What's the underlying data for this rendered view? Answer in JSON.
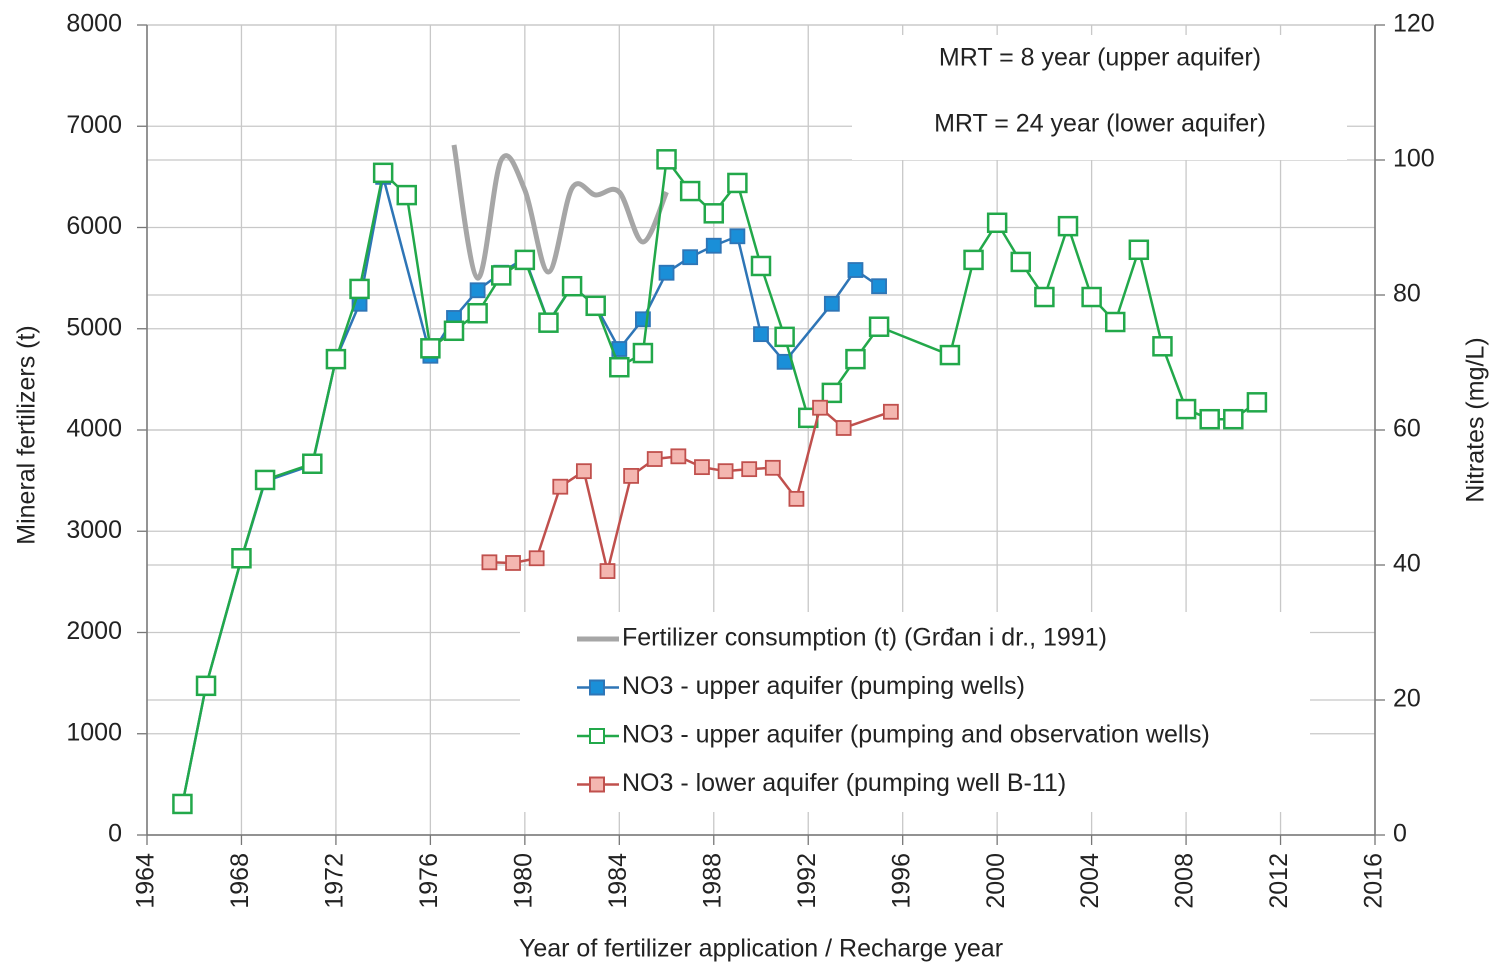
{
  "chart_data": {
    "type": "line",
    "xlabel": "Year of fertilizer application / Recharge year",
    "ylabel": "Mineral fertilizers (t)",
    "y2label": "Nitrates (mg/L)",
    "annotations": [
      "MRT = 8 year (upper aquifer)",
      "MRT = 24 year (lower aquifer)"
    ],
    "xlim": [
      1964,
      2016
    ],
    "xticks": [
      1964,
      1968,
      1972,
      1976,
      1980,
      1984,
      1988,
      1992,
      1996,
      2000,
      2004,
      2008,
      2012,
      2016
    ],
    "ylim": [
      0,
      8000
    ],
    "yticks": [
      0,
      1000,
      2000,
      3000,
      4000,
      5000,
      6000,
      7000,
      8000
    ],
    "y2lim": [
      0,
      120
    ],
    "y2ticks": [
      0,
      20,
      40,
      60,
      80,
      100,
      120
    ],
    "grid": true,
    "legend": "bottom",
    "series": [
      {
        "name": "Fertilizer consumption (t) (Grđan i dr., 1991)",
        "color": "#a6a6a6",
        "marker": "none",
        "smooth": true,
        "axis": "y",
        "x": [
          1977,
          1978,
          1979,
          1980,
          1981,
          1982,
          1983,
          1984,
          1985,
          1986
        ],
        "values": [
          6815,
          5500,
          6667,
          6370,
          5560,
          6390,
          6321,
          6350,
          5857,
          6350
        ]
      },
      {
        "name": "NO3 - upper aquifer (pumping wells)",
        "color": "#2e75b6",
        "marker": "square",
        "marker_fill": "#1a8fd8",
        "axis": "y2",
        "x": [
          1965.5,
          1966.5,
          1968,
          1969,
          1971,
          1972,
          1973,
          1974,
          1976,
          1977,
          1978,
          1979,
          1980,
          1981,
          1982,
          1983,
          1984,
          1985,
          1986,
          1987,
          1988,
          1989,
          1990,
          1991,
          1993,
          1994,
          1995
        ],
        "values": [
          4.6,
          22.1,
          40.9,
          52.4,
          54.8,
          70.5,
          78.7,
          97.5,
          71.0,
          76.6,
          80.7,
          83.3,
          85.5,
          76.0,
          81.3,
          78.4,
          72.0,
          76.4,
          83.3,
          85.6,
          87.3,
          88.7,
          74.2,
          70.1,
          78.7,
          83.7,
          81.3
        ]
      },
      {
        "name": "NO3 - upper aquifer (pumping and observation wells)",
        "color": "#22a84a",
        "marker": "square",
        "marker_fill": "#ffffff",
        "axis": "y2",
        "x": [
          1965.5,
          1966.5,
          1968,
          1969,
          1971,
          1972,
          1973,
          1974,
          1975,
          1976,
          1977,
          1978,
          1979,
          1980,
          1981,
          1982,
          1983,
          1984,
          1985,
          1986,
          1987,
          1988,
          1989,
          1990,
          1991,
          1992,
          1993,
          1994,
          1995,
          1998,
          1999,
          2000,
          2001,
          2002,
          2003,
          2004,
          2005,
          2006,
          2007,
          2008,
          2009,
          2010,
          2011
        ],
        "values": [
          4.6,
          22.1,
          41.0,
          52.6,
          55.0,
          70.5,
          80.9,
          98.1,
          94.8,
          72.1,
          74.7,
          77.3,
          82.9,
          85.2,
          75.9,
          81.3,
          78.4,
          69.3,
          71.4,
          100.1,
          95.4,
          92.1,
          96.6,
          84.3,
          73.8,
          61.8,
          65.5,
          70.5,
          75.3,
          71.1,
          85.2,
          90.7,
          84.9,
          79.7,
          90.2,
          79.7,
          76.0,
          86.7,
          72.4,
          63.1,
          61.6,
          61.6,
          64.1
        ]
      },
      {
        "name": "NO3 - lower aquifer (pumping well B-11)",
        "color": "#c0504d",
        "marker": "square",
        "marker_fill": "#f4b6b0",
        "axis": "y2",
        "x": [
          1978.5,
          1979.5,
          1980.5,
          1981.5,
          1982.5,
          1983.5,
          1984.5,
          1985.5,
          1986.5,
          1987.5,
          1988.5,
          1989.5,
          1990.5,
          1991.5,
          1992.5,
          1993.5,
          1995.5
        ],
        "values": [
          40.4,
          40.3,
          41.0,
          51.6,
          53.9,
          39.1,
          53.2,
          55.7,
          56.1,
          54.5,
          53.9,
          54.2,
          54.4,
          49.8,
          63.3,
          60.3,
          62.7
        ]
      }
    ]
  }
}
